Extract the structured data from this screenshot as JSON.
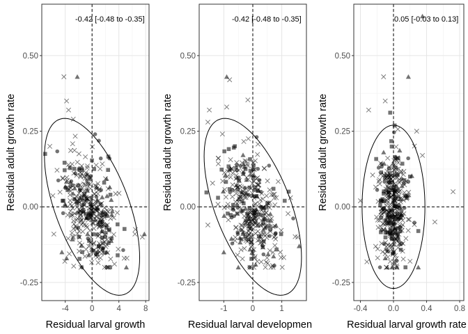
{
  "chart_data": [
    {
      "type": "scatter",
      "title": "",
      "annotation": "-0.42 [-0.48 to -0.35]",
      "xlabel": "Residual larval growth",
      "ylabel": "Residual adult growth rate",
      "xlim": [
        -7.5,
        8.5
      ],
      "ylim": [
        -0.31,
        0.67
      ],
      "x_ticks": [
        -4,
        0,
        4,
        8
      ],
      "x_tick_labels": [
        "-4",
        "0",
        "4",
        "8"
      ],
      "y_ticks": [
        -0.25,
        0.0,
        0.25,
        0.5
      ],
      "y_tick_labels": [
        "-0.25",
        "0.00",
        "0.25",
        "0.50"
      ],
      "grid": true,
      "reference_lines": {
        "x": 0,
        "y": 0,
        "style": "dashed"
      },
      "ellipse": {
        "center_x": 0,
        "center_y": 0,
        "semi_axis_x": 7.1,
        "semi_axis_y": 0.27,
        "orientation": "negative"
      },
      "point_cloud": {
        "center_x": -0.3,
        "center_y": -0.01,
        "sd_x": 2.1,
        "sd_y": 0.1,
        "correlation": -0.42,
        "x_range": [
          -7,
          8
        ],
        "y_range": [
          -0.2,
          0.44
        ]
      },
      "highlighted_points": [
        {
          "x": -4.2,
          "y": 0.43,
          "marker": "cross"
        },
        {
          "x": -2.2,
          "y": 0.43,
          "marker": "triangle"
        },
        {
          "x": -3.8,
          "y": 0.35,
          "marker": "cross"
        },
        {
          "x": -3.5,
          "y": 0.32,
          "marker": "cross"
        },
        {
          "x": -2.8,
          "y": 0.29,
          "marker": "cross"
        },
        {
          "x": 2.6,
          "y": 0.16,
          "marker": "circle"
        },
        {
          "x": 1.3,
          "y": 0.16,
          "marker": "circle"
        },
        {
          "x": 1.8,
          "y": 0.08,
          "marker": "square"
        },
        {
          "x": 7.8,
          "y": -0.09,
          "marker": "triangle"
        },
        {
          "x": 7.5,
          "y": -0.1,
          "marker": "cross"
        },
        {
          "x": 6.4,
          "y": -0.09,
          "marker": "cross"
        },
        {
          "x": -4.5,
          "y": -0.15,
          "marker": "triangle"
        },
        {
          "x": -3.8,
          "y": -0.17,
          "marker": "triangle"
        },
        {
          "x": -0.5,
          "y": -0.16,
          "marker": "triangle"
        },
        {
          "x": 2.2,
          "y": -0.15,
          "marker": "triangle"
        },
        {
          "x": 4.8,
          "y": -0.17,
          "marker": "cross"
        },
        {
          "x": -5.7,
          "y": -0.09,
          "marker": "cross"
        },
        {
          "x": -6.3,
          "y": 0.2,
          "marker": "cross"
        }
      ]
    },
    {
      "type": "scatter",
      "title": "",
      "annotation": "-0.42 [-0.48 to -0.35]",
      "xlabel": "Residual larval developmen",
      "ylabel": "Residual adult growth rate",
      "xlim": [
        -1.85,
        1.85
      ],
      "ylim": [
        -0.31,
        0.67
      ],
      "x_ticks": [
        -1,
        0,
        1
      ],
      "x_tick_labels": [
        "-1",
        "0",
        "1"
      ],
      "y_ticks": [
        -0.25,
        0.0,
        0.25,
        0.5
      ],
      "y_tick_labels": [
        "-0.25",
        "0.00",
        "0.25",
        "0.50"
      ],
      "grid": true,
      "reference_lines": {
        "x": 0,
        "y": 0,
        "style": "dashed"
      },
      "ellipse": {
        "center_x": 0,
        "center_y": 0,
        "semi_axis_x": 1.68,
        "semi_axis_y": 0.27,
        "orientation": "negative"
      },
      "point_cloud": {
        "center_x": -0.05,
        "center_y": -0.01,
        "sd_x": 0.5,
        "sd_y": 0.1,
        "correlation": -0.42,
        "x_range": [
          -1.6,
          1.6
        ],
        "y_range": [
          -0.2,
          0.43
        ]
      },
      "highlighted_points": [
        {
          "x": -0.9,
          "y": 0.43,
          "marker": "triangle"
        },
        {
          "x": -0.8,
          "y": 0.42,
          "marker": "cross"
        },
        {
          "x": -0.9,
          "y": 0.33,
          "marker": "cross"
        },
        {
          "x": -1.5,
          "y": 0.32,
          "marker": "cross"
        },
        {
          "x": -1.55,
          "y": 0.28,
          "marker": "cross"
        },
        {
          "x": 1.3,
          "y": 0.03,
          "marker": "cross"
        },
        {
          "x": 1.55,
          "y": -0.1,
          "marker": "cross"
        },
        {
          "x": 1.6,
          "y": -0.13,
          "marker": "triangle"
        },
        {
          "x": -1.0,
          "y": -0.15,
          "marker": "triangle"
        },
        {
          "x": -0.5,
          "y": -0.2,
          "marker": "triangle"
        },
        {
          "x": 0.7,
          "y": -0.2,
          "marker": "cross"
        },
        {
          "x": 0.95,
          "y": -0.15,
          "marker": "cross"
        },
        {
          "x": -1.55,
          "y": -0.06,
          "marker": "cross"
        },
        {
          "x": 1.1,
          "y": 0.02,
          "marker": "square"
        },
        {
          "x": -1.2,
          "y": 0.03,
          "marker": "square"
        }
      ]
    },
    {
      "type": "scatter",
      "title": "",
      "annotation": "0.05 [-0.03 to 0.13]",
      "xlabel": "Residual larval growth rate",
      "ylabel": "Residual adult growth rate",
      "xlim": [
        -0.48,
        0.85
      ],
      "ylim": [
        -0.31,
        0.67
      ],
      "x_ticks": [
        -0.4,
        0.0,
        0.4,
        0.8
      ],
      "x_tick_labels": [
        "-0.4",
        "0.0",
        "0.4",
        "0.8"
      ],
      "y_ticks": [
        -0.25,
        0.0,
        0.25,
        0.5
      ],
      "y_tick_labels": [
        "-0.25",
        "0.00",
        "0.25",
        "0.50"
      ],
      "grid": true,
      "reference_lines": {
        "x": 0,
        "y": 0,
        "style": "dashed"
      },
      "ellipse": {
        "center_x": 0,
        "center_y": 0,
        "semi_axis_x": 0.38,
        "semi_axis_y": 0.27,
        "orientation": "none"
      },
      "point_cloud": {
        "center_x": -0.01,
        "center_y": 0.0,
        "sd_x": 0.09,
        "sd_y": 0.1,
        "correlation": 0.05,
        "x_range": [
          -0.4,
          0.7
        ],
        "y_range": [
          -0.2,
          0.44
        ]
      },
      "highlighted_points": [
        {
          "x": 0.35,
          "y": 0.63,
          "marker": "triangle"
        },
        {
          "x": -0.12,
          "y": 0.43,
          "marker": "cross"
        },
        {
          "x": 0.18,
          "y": 0.43,
          "marker": "triangle"
        },
        {
          "x": -0.3,
          "y": 0.32,
          "marker": "cross"
        },
        {
          "x": -0.1,
          "y": 0.35,
          "marker": "cross"
        },
        {
          "x": 0.72,
          "y": 0.05,
          "marker": "cross"
        },
        {
          "x": 0.5,
          "y": -0.05,
          "marker": "cross"
        },
        {
          "x": 0.3,
          "y": -0.08,
          "marker": "square"
        },
        {
          "x": 0.3,
          "y": -0.2,
          "marker": "triangle"
        },
        {
          "x": 0.2,
          "y": -0.18,
          "marker": "cross"
        },
        {
          "x": -0.1,
          "y": -0.17,
          "marker": "triangle"
        },
        {
          "x": -0.4,
          "y": 0.02,
          "marker": "cross"
        },
        {
          "x": 0.28,
          "y": 0.25,
          "marker": "cross"
        },
        {
          "x": 0.35,
          "y": 0.17,
          "marker": "cross"
        },
        {
          "x": 0.2,
          "y": 0.1,
          "marker": "square"
        }
      ]
    }
  ]
}
